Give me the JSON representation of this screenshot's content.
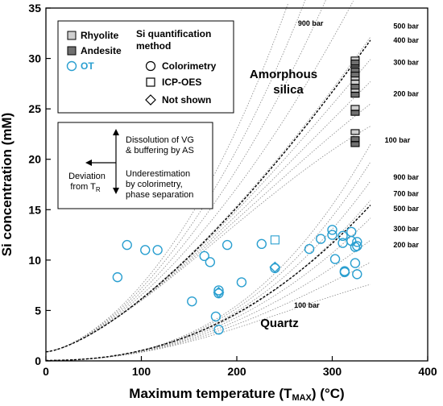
{
  "chart_data": {
    "type": "scatter",
    "xlabel": "Maximum temperature (T",
    "xlabel_sub": "MAX",
    "xlabel_tail": ") (°C)",
    "ylabel": "Si concentration (mM)",
    "xlim": [
      0,
      400
    ],
    "ylim": [
      0,
      35
    ],
    "xticks": [
      0,
      100,
      200,
      300,
      400
    ],
    "yticks": [
      0,
      5,
      10,
      15,
      20,
      25,
      30,
      35
    ],
    "grid": false,
    "colors": {
      "ot": "#2a9fd0",
      "rhyolite": "#cfcfcf",
      "andesite": "#707070",
      "dashed": "#000000",
      "dotted": "#888888"
    },
    "legend": {
      "placement": "top-left",
      "rock_types": [
        {
          "label": "Rhyolite",
          "marker": "square",
          "fill": "#cfcfcf"
        },
        {
          "label": "Andesite",
          "marker": "square",
          "fill": "#707070"
        },
        {
          "label": "OT",
          "marker": "circle",
          "fill": "none"
        }
      ],
      "method_title": [
        "Si quantification",
        "method"
      ],
      "methods": [
        {
          "label": "Colorimetry",
          "marker": "circle"
        },
        {
          "label": "ICP-OES",
          "marker": "square"
        },
        {
          "label": "Not shown",
          "marker": "diamond"
        }
      ]
    },
    "inset": {
      "up_text": [
        "Dissolution of VG",
        "& buffering by AS"
      ],
      "down_text": [
        "Underestimation",
        "by colorimetry,",
        "phase separation"
      ],
      "left_text": "Deviation",
      "left_text2": "from T",
      "left_sub": "R"
    },
    "curve_labels": {
      "amorphous": [
        "Amorphous",
        "silica"
      ],
      "quartz": "Quartz"
    },
    "pressure_labels": [
      {
        "text": "900 bar",
        "x": 264,
        "y": 33.5
      },
      {
        "text": "500 bar",
        "x": 364,
        "y": 33.2
      },
      {
        "text": "400 bar",
        "x": 364,
        "y": 31.8
      },
      {
        "text": "300 bar",
        "x": 364,
        "y": 29.6
      },
      {
        "text": "200 bar",
        "x": 364,
        "y": 26.5
      },
      {
        "text": "100 bar",
        "x": 355,
        "y": 21.9
      },
      {
        "text": "900 bar",
        "x": 364,
        "y": 18.2
      },
      {
        "text": "700 bar",
        "x": 364,
        "y": 16.6
      },
      {
        "text": "500 bar",
        "x": 364,
        "y": 15.1
      },
      {
        "text": "300 bar",
        "x": 364,
        "y": 13.1
      },
      {
        "text": "200 bar",
        "x": 364,
        "y": 11.5
      },
      {
        "text": "100 bar",
        "x": 260,
        "y": 5.5
      }
    ],
    "series": [
      {
        "name": "OT",
        "marker": "circle",
        "points": [
          [
            75,
            8.3
          ],
          [
            85,
            11.5
          ],
          [
            104,
            11.0
          ],
          [
            117,
            11.0
          ],
          [
            153,
            5.9
          ],
          [
            166,
            10.4
          ],
          [
            172,
            9.8
          ],
          [
            178,
            4.4
          ],
          [
            181,
            3.1
          ],
          [
            181,
            7.0
          ],
          [
            181,
            6.7
          ],
          [
            190,
            11.5
          ],
          [
            205,
            7.8
          ],
          [
            226,
            11.6
          ],
          [
            240,
            9.2
          ],
          [
            276,
            11.1
          ],
          [
            288,
            12.1
          ],
          [
            300,
            13.0
          ],
          [
            300,
            12.5
          ],
          [
            303,
            10.1
          ],
          [
            311,
            12.4
          ],
          [
            311,
            11.7
          ],
          [
            313,
            8.9
          ],
          [
            320,
            12.8
          ],
          [
            320,
            11.9
          ],
          [
            324,
            11.3
          ],
          [
            326,
            11.8
          ],
          [
            324,
            9.7
          ],
          [
            326,
            8.6
          ],
          [
            326,
            11.4
          ],
          [
            313,
            8.8
          ]
        ]
      },
      {
        "name": "OT",
        "marker": "square",
        "points": [
          [
            240,
            12.0
          ]
        ]
      },
      {
        "name": "OT",
        "marker": "diamond",
        "points": [
          [
            181,
            6.8
          ],
          [
            240,
            9.3
          ]
        ]
      },
      {
        "name": "Rhyolite",
        "marker": "square",
        "points": [
          [
            324,
            29.9
          ],
          [
            324,
            28.1
          ],
          [
            324,
            26.9
          ],
          [
            324,
            25.1
          ],
          [
            324,
            22.7
          ],
          [
            324,
            21.8
          ],
          [
            324,
            27.6
          ]
        ]
      },
      {
        "name": "Andesite",
        "marker": "square",
        "points": [
          [
            324,
            29.4
          ],
          [
            324,
            28.8
          ],
          [
            324,
            27.2
          ],
          [
            324,
            26.4
          ],
          [
            324,
            24.6
          ],
          [
            324,
            22.0
          ],
          [
            324,
            21.5
          ],
          [
            324,
            29.6
          ],
          [
            324,
            28.4
          ]
        ]
      }
    ]
  }
}
